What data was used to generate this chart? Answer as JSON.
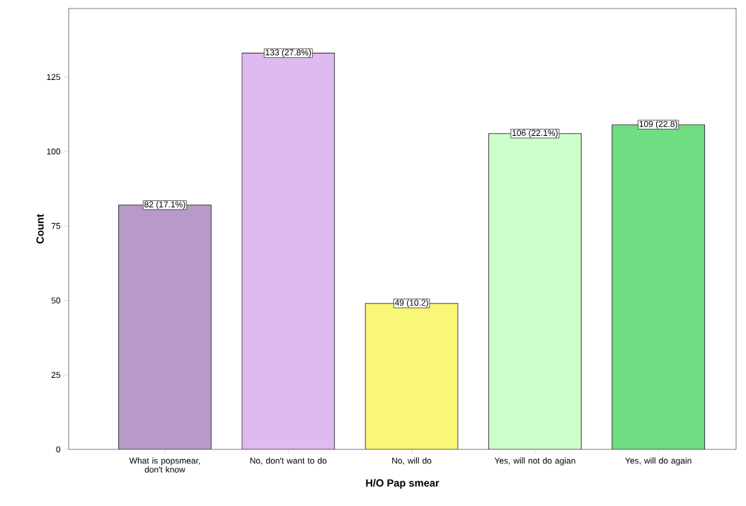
{
  "chart_data": {
    "type": "bar",
    "xlabel": "H/O Pap smear",
    "ylabel": "Count",
    "categories": [
      "What is popsmear, don't know",
      "No, don't want to do",
      "No, will do",
      "Yes, will not do agian",
      "Yes, will do again"
    ],
    "values": [
      82,
      133,
      49,
      106,
      109
    ],
    "colors": [
      "#b79ac8",
      "#dfbaf1",
      "#f9f777",
      "#ccffcc",
      "#6fdd82"
    ],
    "value_labels": [
      "82 (17.1%)",
      "133 (27.8%)",
      "49 (10.2)",
      "106 (22.1%)",
      "109 (22.8)"
    ],
    "ylim": [
      0,
      148
    ],
    "yticks": [
      0,
      25,
      50,
      75,
      100,
      125
    ]
  }
}
